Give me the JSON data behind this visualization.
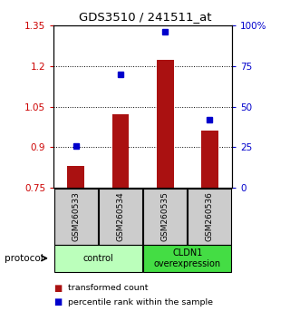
{
  "title": "GDS3510 / 241511_at",
  "samples": [
    "GSM260533",
    "GSM260534",
    "GSM260535",
    "GSM260536"
  ],
  "bar_values": [
    0.832,
    1.022,
    1.222,
    0.962
  ],
  "bar_base": 0.75,
  "bar_color": "#aa1111",
  "dot_values": [
    26,
    70,
    96,
    42
  ],
  "dot_color": "#0000cc",
  "ylim_left": [
    0.75,
    1.35
  ],
  "ylim_right": [
    0,
    100
  ],
  "yticks_left": [
    0.75,
    0.9,
    1.05,
    1.2,
    1.35
  ],
  "ytick_labels_left": [
    "0.75",
    "0.9",
    "1.05",
    "1.2",
    "1.35"
  ],
  "yticks_right": [
    0,
    25,
    50,
    75,
    100
  ],
  "ytick_labels_right": [
    "0",
    "25",
    "50",
    "75",
    "100%"
  ],
  "dotted_lines": [
    0.9,
    1.05,
    1.2
  ],
  "groups": [
    {
      "label": "control",
      "samples": [
        0,
        1
      ],
      "color": "#bbffbb"
    },
    {
      "label": "CLDN1\noverexpression",
      "samples": [
        2,
        3
      ],
      "color": "#44dd44"
    }
  ],
  "protocol_label": "protocol",
  "legend_bar_label": "transformed count",
  "legend_dot_label": "percentile rank within the sample",
  "sample_box_color": "#cccccc",
  "background_color": "#ffffff",
  "plot_bg_color": "#ffffff"
}
